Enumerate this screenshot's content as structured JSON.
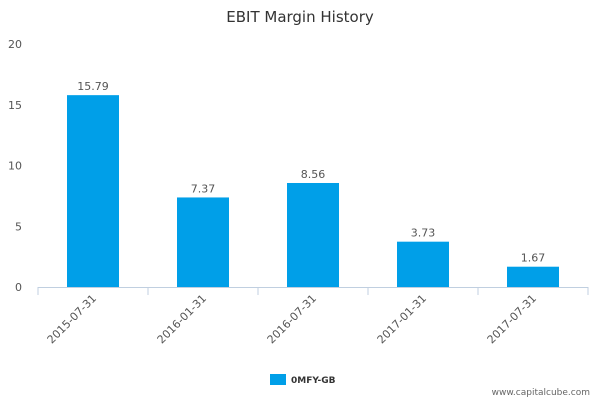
{
  "chart_data": {
    "type": "bar",
    "title": "EBIT Margin History",
    "xlabel": "",
    "ylabel": "",
    "categories": [
      "2015-07-31",
      "2016-01-31",
      "2016-07-31",
      "2017-01-31",
      "2017-07-31"
    ],
    "series": [
      {
        "name": "0MFY-GB",
        "values": [
          15.79,
          7.37,
          8.56,
          3.73,
          1.67
        ],
        "labels": [
          "15.79",
          "7.37",
          "8.56",
          "3.73",
          "1.67"
        ],
        "color": "#009fe8"
      }
    ],
    "ylim": [
      0,
      20
    ],
    "yticks": [
      "0",
      "5",
      "10",
      "15",
      "20"
    ],
    "grid": false,
    "legend": "bottom-center"
  },
  "watermark": "www.capitalcube.com"
}
